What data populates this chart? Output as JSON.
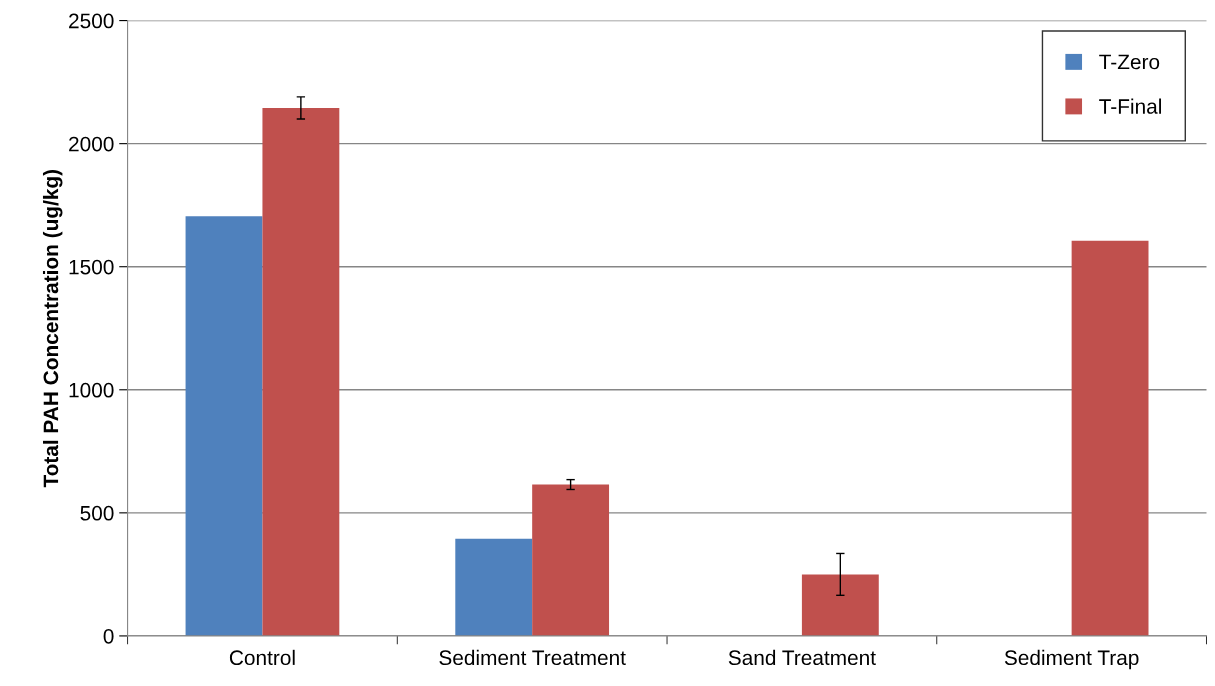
{
  "chart_data": {
    "type": "bar",
    "ylabel": "Total PAH Concentration (ug/kg)",
    "categories": [
      "Control",
      "Sediment Treatment",
      "Sand Treatment",
      "Sediment Trap"
    ],
    "series": [
      {
        "name": "T-Zero",
        "color": "#4f81bd",
        "values": [
          1705,
          395,
          null,
          null
        ]
      },
      {
        "name": "T-Final",
        "color": "#c0504d",
        "values": [
          2145,
          615,
          250,
          1605
        ],
        "errors": [
          45,
          20,
          85,
          null
        ]
      }
    ],
    "ylim": [
      0,
      2500
    ],
    "yticks": [
      0,
      500,
      1000,
      1500,
      2000,
      2500
    ],
    "grid": "y",
    "legend": "top right"
  }
}
